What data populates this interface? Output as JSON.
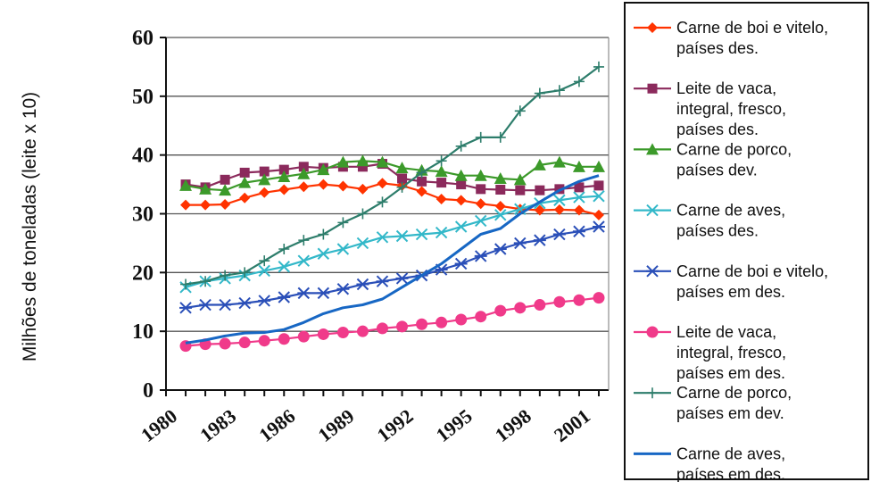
{
  "chart_data": {
    "type": "line",
    "title": "",
    "xlabel": "",
    "ylabel": "Milhões de toneladas (leite x 10)",
    "ylim": [
      0,
      60
    ],
    "xlim": [
      1980,
      2002.5
    ],
    "yticks": [
      "0",
      "10",
      "20",
      "30",
      "40",
      "50",
      "60"
    ],
    "xticks": [
      "1980",
      "1983",
      "1986",
      "1989",
      "1992",
      "1995",
      "1998",
      "2001"
    ],
    "grid": true,
    "legend_position": "right",
    "x": [
      1981,
      1982,
      1983,
      1984,
      1985,
      1986,
      1987,
      1988,
      1989,
      1990,
      1991,
      1992,
      1993,
      1994,
      1995,
      1996,
      1997,
      1998,
      1999,
      2000,
      2001,
      2002
    ],
    "series": [
      {
        "name_lines": [
          "Carne de boi e vitelo,",
          "países des."
        ],
        "color": "#ff3300",
        "marker": "diamond",
        "values": [
          31.5,
          31.5,
          31.6,
          32.7,
          33.6,
          34.1,
          34.6,
          35.0,
          34.7,
          34.2,
          35.2,
          34.8,
          33.8,
          32.5,
          32.3,
          31.7,
          31.3,
          30.8,
          30.6,
          30.7,
          30.6,
          29.8
        ]
      },
      {
        "name_lines": [
          "Leite de vaca,",
          "integral, fresco,",
          "países des."
        ],
        "color": "#8b2a5c",
        "marker": "square",
        "values": [
          35.0,
          34.5,
          35.8,
          37.0,
          37.2,
          37.5,
          38.0,
          37.8,
          38.0,
          38.0,
          38.5,
          36.0,
          35.5,
          35.3,
          35.0,
          34.2,
          34.1,
          34.0,
          34.0,
          34.2,
          34.5,
          34.8
        ]
      },
      {
        "name_lines": [
          "Carne de porco,",
          "países dev."
        ],
        "color": "#3c9a2a",
        "marker": "triangle",
        "values": [
          34.8,
          34.2,
          34.0,
          35.3,
          35.8,
          36.3,
          36.8,
          37.5,
          38.8,
          39.0,
          38.8,
          37.8,
          37.4,
          37.2,
          36.5,
          36.5,
          36.0,
          35.8,
          38.3,
          38.8,
          38.0,
          38.0
        ]
      },
      {
        "name_lines": [
          "Carne de aves,",
          "países des."
        ],
        "color": "#33b8c9",
        "marker": "x",
        "values": [
          17.5,
          18.5,
          19.0,
          19.5,
          20.3,
          21.0,
          22.0,
          23.2,
          24.0,
          25.0,
          26.0,
          26.2,
          26.5,
          26.8,
          27.8,
          28.8,
          29.8,
          30.8,
          31.8,
          32.3,
          32.8,
          33.0
        ]
      },
      {
        "name_lines": [
          "Carne de boi e vitelo,",
          "países em des."
        ],
        "color": "#2a4fb8",
        "marker": "asterisk",
        "values": [
          14.0,
          14.5,
          14.5,
          14.8,
          15.2,
          15.8,
          16.5,
          16.5,
          17.2,
          18.0,
          18.5,
          19.0,
          19.5,
          20.5,
          21.5,
          22.8,
          24.0,
          25.0,
          25.5,
          26.5,
          27.0,
          27.8
        ]
      },
      {
        "name_lines": [
          "Leite de vaca,",
          "integral, fresco,",
          "países em des."
        ],
        "color": "#f03a8a",
        "marker": "circle",
        "values": [
          7.5,
          7.8,
          7.9,
          8.1,
          8.4,
          8.7,
          9.1,
          9.5,
          9.8,
          10.0,
          10.5,
          10.8,
          11.2,
          11.5,
          12.0,
          12.5,
          13.5,
          14.0,
          14.5,
          15.0,
          15.3,
          15.7
        ]
      },
      {
        "name_lines": [
          "Carne de porco,",
          "países em dev."
        ],
        "color": "#2d7d6b",
        "marker": "plus",
        "values": [
          18.0,
          18.5,
          19.5,
          20.0,
          22.0,
          24.0,
          25.5,
          26.5,
          28.5,
          30.0,
          32.0,
          34.5,
          37.0,
          39.0,
          41.5,
          43.0,
          43.0,
          47.5,
          50.5,
          51.0,
          52.5,
          55.0
        ]
      },
      {
        "name_lines": [
          "Carne de aves,",
          "países em des."
        ],
        "color": "#1767c4",
        "marker": "none",
        "values": [
          8.0,
          8.5,
          9.2,
          9.7,
          9.8,
          10.3,
          11.5,
          13.0,
          14.0,
          14.5,
          15.5,
          17.5,
          19.5,
          21.5,
          24.0,
          26.5,
          27.5,
          30.0,
          32.0,
          34.0,
          35.5,
          36.5
        ]
      }
    ]
  }
}
